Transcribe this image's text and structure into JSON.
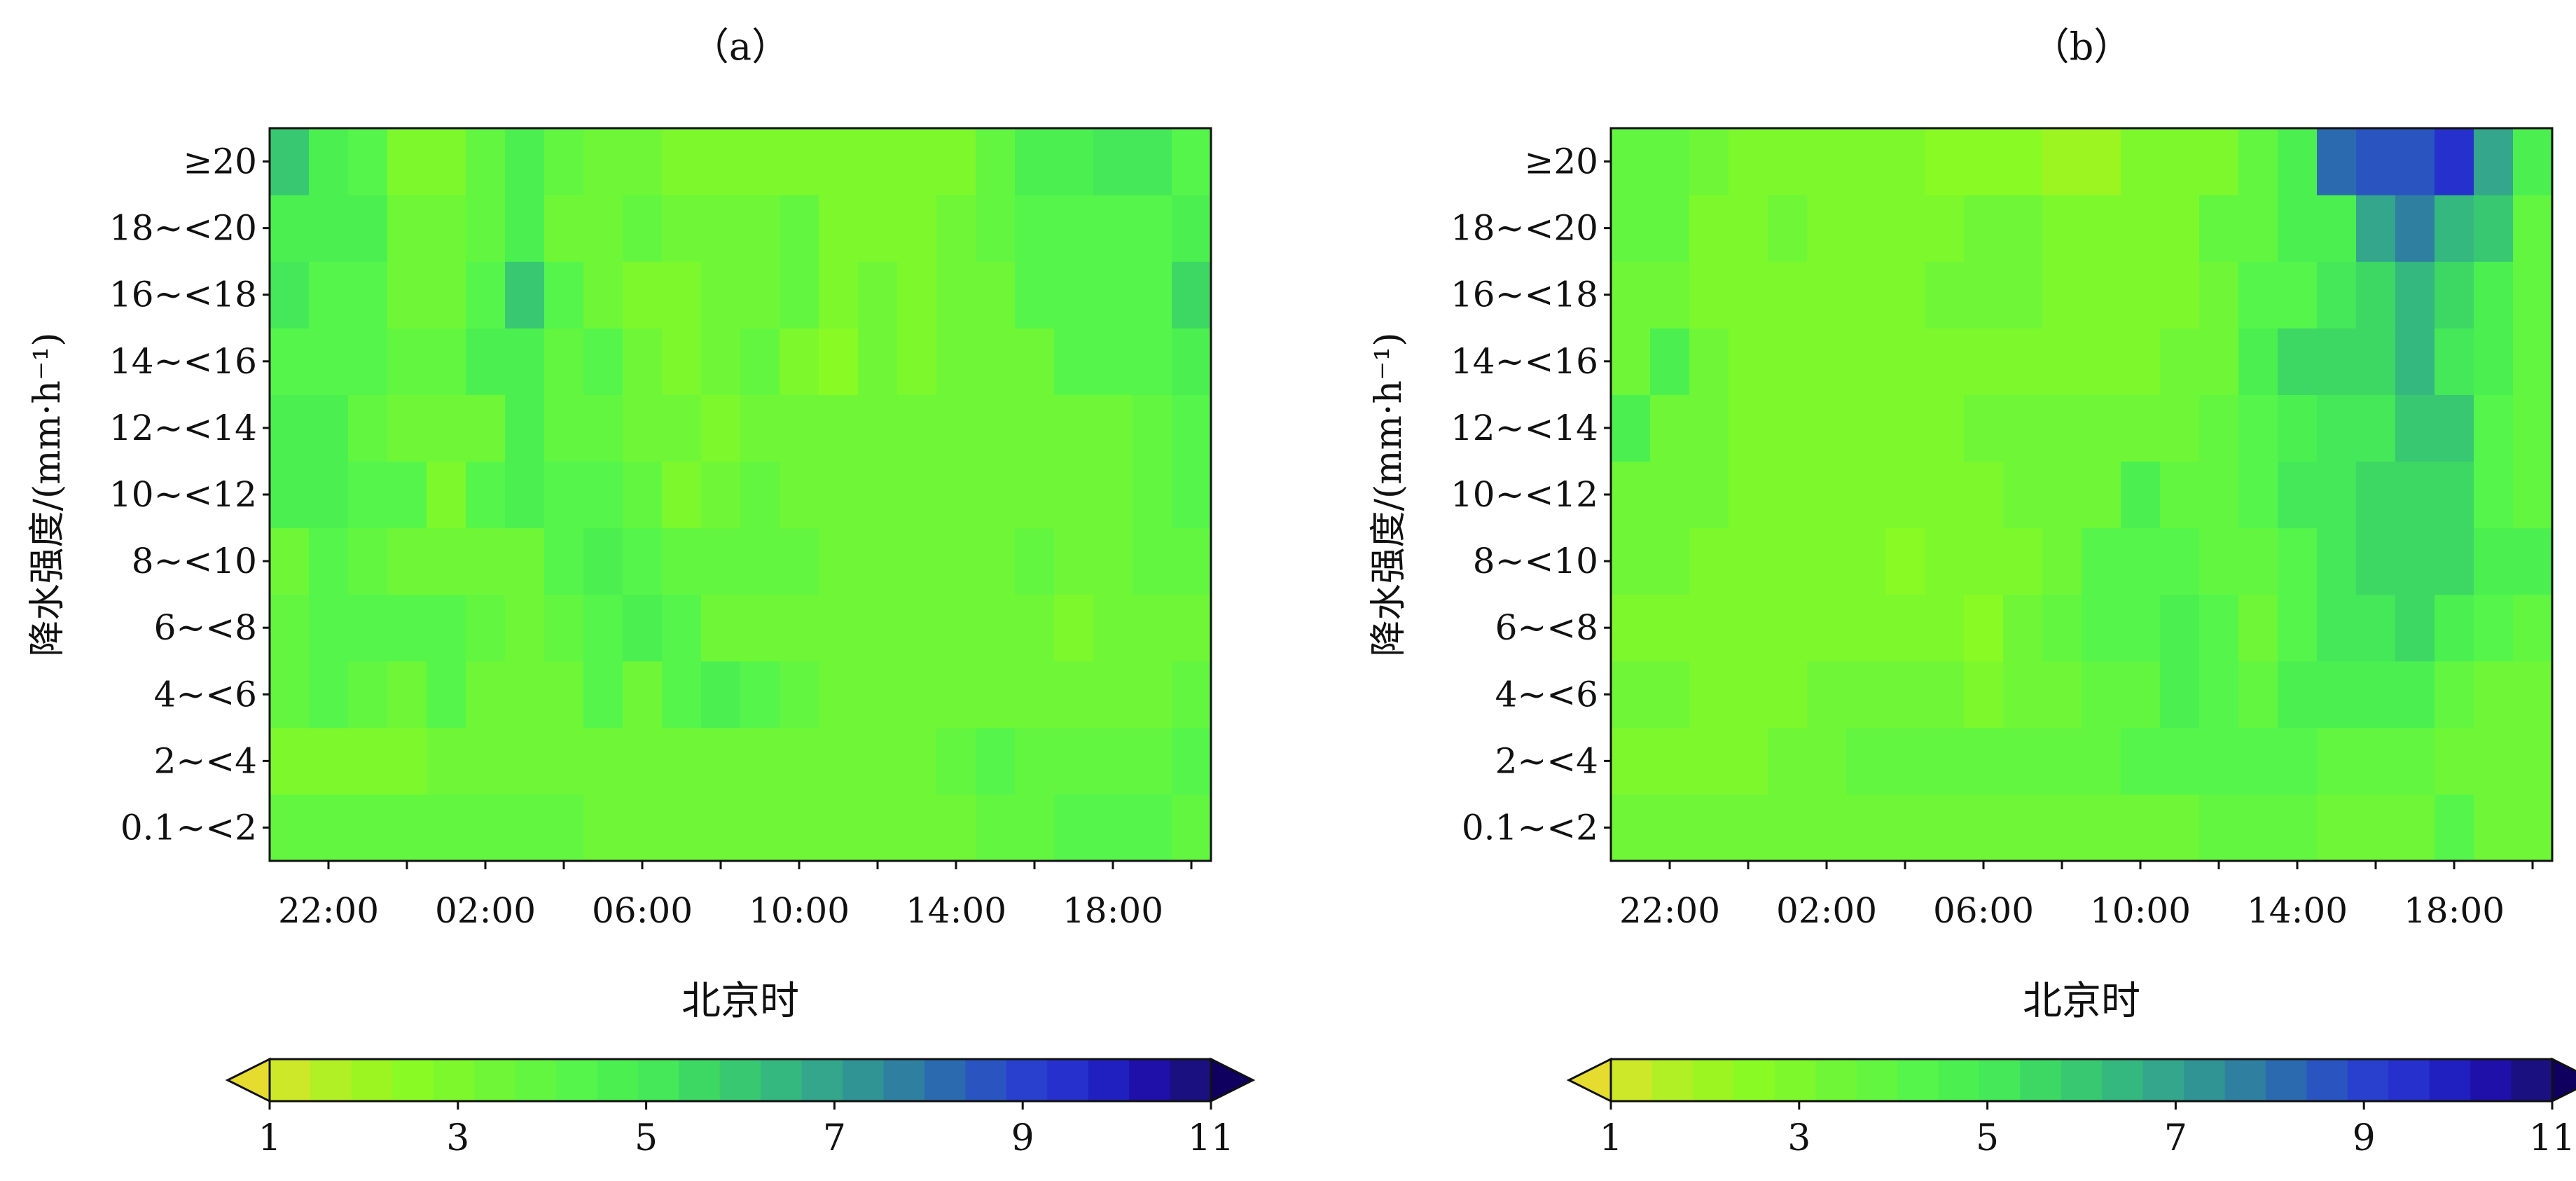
{
  "chart_data": [
    {
      "type": "heatmap",
      "title": "（a）",
      "xlabel": "北京时",
      "ylabel": "降水强度/(mm·h⁻¹)",
      "x_tick_labels": [
        "22:00",
        "02:00",
        "06:00",
        "10:00",
        "14:00",
        "18:00"
      ],
      "y_categories": [
        "0.1~<2",
        "2~<4",
        "4~<6",
        "6~<8",
        "8~<10",
        "10~<12",
        "12~<14",
        "14~<16",
        "16~<18",
        "18~<20",
        "≥20"
      ],
      "columns": 24,
      "colorbar": {
        "ticks": [
          1,
          3,
          5,
          7,
          9,
          11
        ],
        "min": 1,
        "max": 11,
        "step": 0.5,
        "extend": "both"
      },
      "values": [
        [
          4.0,
          4.0,
          4.0,
          4.0,
          4.0,
          4.0,
          4.0,
          4.0,
          3.8,
          3.8,
          3.8,
          3.8,
          3.8,
          3.8,
          3.8,
          3.8,
          3.8,
          3.8,
          4.0,
          4.0,
          4.5,
          4.5,
          4.5,
          4.0
        ],
        [
          3.3,
          3.3,
          3.3,
          3.3,
          3.8,
          3.8,
          3.8,
          3.8,
          3.8,
          3.8,
          3.8,
          3.8,
          3.8,
          3.8,
          3.8,
          3.8,
          3.8,
          4.0,
          4.5,
          4.0,
          4.0,
          4.0,
          4.0,
          4.5
        ],
        [
          4.0,
          4.6,
          4.0,
          3.8,
          4.6,
          3.8,
          3.8,
          3.8,
          4.6,
          3.8,
          4.6,
          5.3,
          4.6,
          4.0,
          3.8,
          3.8,
          3.8,
          3.8,
          3.8,
          3.8,
          3.8,
          3.8,
          3.8,
          4.0
        ],
        [
          4.0,
          4.6,
          4.6,
          4.6,
          4.6,
          4.0,
          3.8,
          4.0,
          4.6,
          5.0,
          4.6,
          3.8,
          3.8,
          3.8,
          3.8,
          3.8,
          3.8,
          3.8,
          3.8,
          3.8,
          3.3,
          3.8,
          3.8,
          3.8
        ],
        [
          3.8,
          4.6,
          4.0,
          3.8,
          3.8,
          3.8,
          3.8,
          4.6,
          5.0,
          4.6,
          4.0,
          4.0,
          4.0,
          4.0,
          3.8,
          3.8,
          3.8,
          3.8,
          3.8,
          4.0,
          3.8,
          3.8,
          4.0,
          4.0
        ],
        [
          5.0,
          5.0,
          4.6,
          4.6,
          3.3,
          4.6,
          5.0,
          4.6,
          4.6,
          4.0,
          3.3,
          3.8,
          4.0,
          3.8,
          3.8,
          3.8,
          3.8,
          3.8,
          3.8,
          3.8,
          3.8,
          3.8,
          4.0,
          4.6
        ],
        [
          5.3,
          5.0,
          4.0,
          3.8,
          3.8,
          3.8,
          5.0,
          4.0,
          4.0,
          3.8,
          3.8,
          3.3,
          3.8,
          3.8,
          3.8,
          3.8,
          3.8,
          3.8,
          3.8,
          3.8,
          3.8,
          3.8,
          4.0,
          4.6
        ],
        [
          4.6,
          4.6,
          4.6,
          4.0,
          4.0,
          5.0,
          5.0,
          4.0,
          4.6,
          3.8,
          3.3,
          3.8,
          4.0,
          3.0,
          2.9,
          3.8,
          3.3,
          3.8,
          3.8,
          3.8,
          4.6,
          4.6,
          4.6,
          5.3
        ],
        [
          5.5,
          4.6,
          4.6,
          3.8,
          3.8,
          4.6,
          6.5,
          4.6,
          3.8,
          3.3,
          3.3,
          3.8,
          3.8,
          4.0,
          3.3,
          3.8,
          3.0,
          3.8,
          3.8,
          4.6,
          4.6,
          4.6,
          4.6,
          6.0
        ],
        [
          5.3,
          5.0,
          5.3,
          3.8,
          3.8,
          4.0,
          5.0,
          3.8,
          3.8,
          4.0,
          3.8,
          3.8,
          3.8,
          4.0,
          3.3,
          3.3,
          3.3,
          3.8,
          4.0,
          4.6,
          4.6,
          4.6,
          4.6,
          5.0
        ],
        [
          6.5,
          5.3,
          4.6,
          3.3,
          3.3,
          4.0,
          5.3,
          4.0,
          3.8,
          3.8,
          3.3,
          3.0,
          3.0,
          3.3,
          3.0,
          3.0,
          3.3,
          3.3,
          4.0,
          5.0,
          5.0,
          5.5,
          5.5,
          4.6
        ]
      ]
    },
    {
      "type": "heatmap",
      "title": "（b）",
      "xlabel": "北京时",
      "ylabel": "降水强度/(mm·h⁻¹)",
      "x_tick_labels": [
        "22:00",
        "02:00",
        "06:00",
        "10:00",
        "14:00",
        "18:00"
      ],
      "y_categories": [
        "0.1~<2",
        "2~<4",
        "4~<6",
        "6~<8",
        "8~<10",
        "10~<12",
        "12~<14",
        "14~<16",
        "16~<18",
        "18~<20",
        "≥20"
      ],
      "columns": 24,
      "colorbar": {
        "ticks": [
          1,
          3,
          5,
          7,
          9,
          11
        ],
        "min": 1,
        "max": 11,
        "step": 0.5,
        "extend": "both"
      },
      "values": [
        [
          3.8,
          3.8,
          3.8,
          3.8,
          3.8,
          3.8,
          3.6,
          3.6,
          3.8,
          3.8,
          3.8,
          3.8,
          3.8,
          3.8,
          3.8,
          4.0,
          4.0,
          4.0,
          3.8,
          3.8,
          3.8,
          4.6,
          3.8,
          3.8
        ],
        [
          3.3,
          3.3,
          3.3,
          3.3,
          3.8,
          3.8,
          4.0,
          4.0,
          4.0,
          4.0,
          4.0,
          4.0,
          4.0,
          4.6,
          4.6,
          4.6,
          4.6,
          4.6,
          4.0,
          4.0,
          4.0,
          3.8,
          3.8,
          3.8
        ],
        [
          3.6,
          3.6,
          3.3,
          3.3,
          3.3,
          3.8,
          3.8,
          3.8,
          3.8,
          3.0,
          3.8,
          3.8,
          4.0,
          4.0,
          5.0,
          4.6,
          4.0,
          5.0,
          5.3,
          5.3,
          5.0,
          4.0,
          3.8,
          3.8
        ],
        [
          3.3,
          3.3,
          3.3,
          3.3,
          3.3,
          3.0,
          3.3,
          3.0,
          3.0,
          2.8,
          3.8,
          4.0,
          4.6,
          4.6,
          5.0,
          4.6,
          3.8,
          4.6,
          5.5,
          5.5,
          6.0,
          5.0,
          4.6,
          4.0
        ],
        [
          3.6,
          3.6,
          3.3,
          3.3,
          3.3,
          3.3,
          3.3,
          2.6,
          3.0,
          3.3,
          3.3,
          3.8,
          4.6,
          4.6,
          4.6,
          4.0,
          4.0,
          4.6,
          5.5,
          6.0,
          6.0,
          6.0,
          5.0,
          5.0
        ],
        [
          3.8,
          3.8,
          3.8,
          3.3,
          3.3,
          3.0,
          3.0,
          3.0,
          3.3,
          3.3,
          3.8,
          3.8,
          3.8,
          5.0,
          4.0,
          4.0,
          4.6,
          5.5,
          5.5,
          6.0,
          6.0,
          6.0,
          4.6,
          4.0
        ],
        [
          5.0,
          3.8,
          3.8,
          3.3,
          3.3,
          3.0,
          3.3,
          3.3,
          3.3,
          3.8,
          3.8,
          3.8,
          3.8,
          3.8,
          3.8,
          4.0,
          4.6,
          5.0,
          5.5,
          5.5,
          6.5,
          6.5,
          4.6,
          4.0
        ],
        [
          3.8,
          5.0,
          3.8,
          3.3,
          3.3,
          3.0,
          3.3,
          3.3,
          3.3,
          3.3,
          3.3,
          3.3,
          3.3,
          3.3,
          3.8,
          3.8,
          5.0,
          6.0,
          6.0,
          6.0,
          7.0,
          5.5,
          5.0,
          4.0
        ],
        [
          3.8,
          3.8,
          3.3,
          3.3,
          3.3,
          3.3,
          3.3,
          3.3,
          3.8,
          3.8,
          3.8,
          3.3,
          3.0,
          3.3,
          3.0,
          3.8,
          4.6,
          4.6,
          5.5,
          6.0,
          7.0,
          6.0,
          5.0,
          4.0
        ],
        [
          4.0,
          4.0,
          3.3,
          3.3,
          3.8,
          3.3,
          3.3,
          3.3,
          3.3,
          3.8,
          3.8,
          3.3,
          3.0,
          3.0,
          3.3,
          4.0,
          4.0,
          5.0,
          5.0,
          7.5,
          8.5,
          7.0,
          6.5,
          4.0
        ],
        [
          4.0,
          4.0,
          3.8,
          3.3,
          3.0,
          3.3,
          3.0,
          3.0,
          2.8,
          2.8,
          2.5,
          2.0,
          2.3,
          3.0,
          3.0,
          3.3,
          4.0,
          5.0,
          9.0,
          9.5,
          9.5,
          10.5,
          7.5,
          5.0
        ]
      ]
    }
  ],
  "palette": [
    "#e6dc30",
    "#cce828",
    "#b0f024",
    "#9cf520",
    "#8afa25",
    "#7df82d",
    "#6ff737",
    "#62f641",
    "#55f54b",
    "#4bf050",
    "#44e858",
    "#3dd863",
    "#38c872",
    "#35b780",
    "#33a68b",
    "#309494",
    "#2e7fa0",
    "#2c6ab0",
    "#2a55c0",
    "#2840cd",
    "#2630cc",
    "#2020c0",
    "#1e10a8",
    "#1a1080",
    "#0f0060"
  ]
}
